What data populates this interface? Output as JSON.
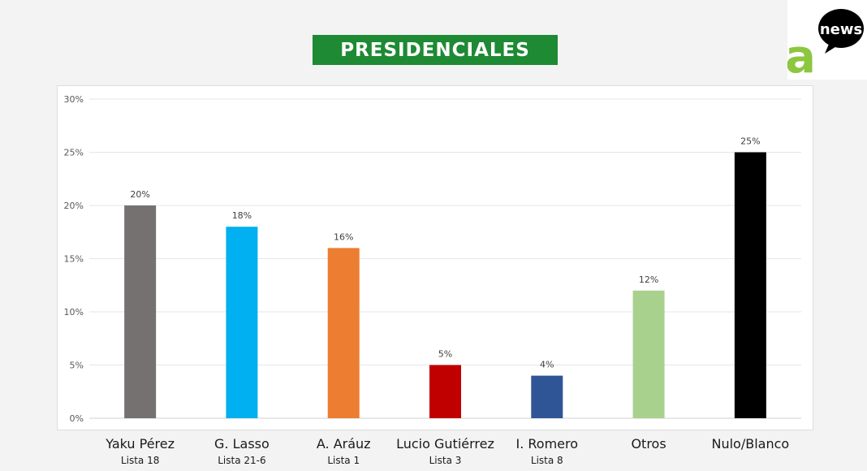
{
  "title": "PRESIDENCIALES",
  "logo": {
    "brand_text": "news",
    "brand_letter": "a"
  },
  "colors": {
    "banner": "#1e8a33",
    "logo_green": "#8dc63f"
  },
  "chart_data": {
    "type": "bar",
    "categories": [
      "Yaku Pérez",
      "G. Lasso",
      "A. Aráuz",
      "Lucio Gutiérrez",
      "I. Romero",
      "Otros",
      "Nulo/Blanco"
    ],
    "subcategories": [
      "Lista 18",
      "Lista 21-6",
      "Lista 1",
      "Lista 3",
      "Lista 8",
      "",
      ""
    ],
    "values": [
      20,
      18,
      16,
      5,
      4,
      12,
      25
    ],
    "value_labels": [
      "20%",
      "18%",
      "16%",
      "5%",
      "4%",
      "12%",
      "25%"
    ],
    "bar_colors": [
      "#767171",
      "#00b0f0",
      "#ed7d31",
      "#c00000",
      "#2f5597",
      "#a9d18e",
      "#000000"
    ],
    "yticks": [
      "0%",
      "5%",
      "10%",
      "15%",
      "20%",
      "25%",
      "30%"
    ],
    "ylim": [
      0,
      30
    ],
    "grid": true,
    "legend": false
  }
}
